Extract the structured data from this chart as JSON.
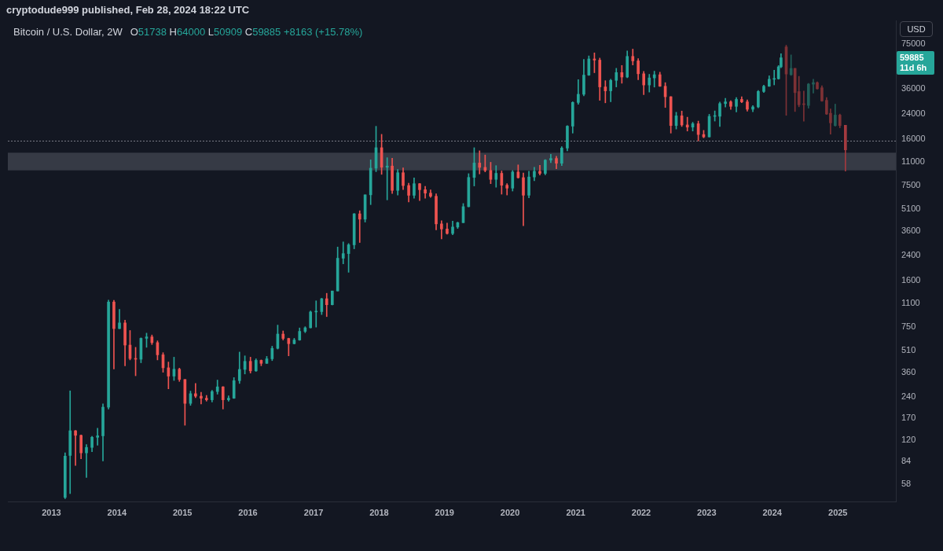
{
  "chart_data": {
    "type": "candlestick",
    "title": "Bitcoin / U.S. Dollar, 2W",
    "subtitle": "O51738 H64000 L50909 C59885 +8163 (+15.78%)",
    "ylabel": "USD",
    "annotations": [
      "cryptodude999 published, Feb 28, 2024 18:22 UTC",
      "59885",
      "11d 6h"
    ],
    "log": true,
    "xlim": [
      "2012-05-03",
      "2025-11-20"
    ],
    "xticks": [
      "2013",
      "2014",
      "2015",
      "2016",
      "2017",
      "2018",
      "2019",
      "2020",
      "2021",
      "2022",
      "2023",
      "2024",
      "2025"
    ],
    "ylim": [
      44,
      110000
    ],
    "yticks": [
      58,
      84,
      120,
      170,
      240,
      360,
      510,
      750,
      1100,
      1600,
      2400,
      3600,
      5100,
      7500,
      11000,
      16000,
      24000,
      36000,
      75000
    ],
    "bands": [
      {
        "axis": "y",
        "from": 9600,
        "to": 12800,
        "color": "#363a45"
      }
    ],
    "ref_lines": [
      {
        "axis": "y",
        "value": 15500,
        "color": "#787b86",
        "line_style": "dotted"
      }
    ],
    "series": [
      {
        "x": [
          "2013-03-18",
          "2013-04-15",
          "2013-05-15",
          "2013-06-15",
          "2013-07-15",
          "2013-08-15",
          "2013-09-15",
          "2013-10-15",
          "2013-11-15",
          "2013-12-15",
          "2014-01-15",
          "2014-02-15",
          "2014-03-15",
          "2014-04-15",
          "2014-05-15",
          "2014-06-15",
          "2014-07-15",
          "2014-08-15",
          "2014-09-15",
          "2014-10-15",
          "2014-11-15",
          "2014-12-15",
          "2015-01-15",
          "2015-02-15",
          "2015-03-15",
          "2015-04-15",
          "2015-05-15",
          "2015-06-15",
          "2015-07-15",
          "2015-08-15",
          "2015-09-15",
          "2015-10-15",
          "2015-11-15",
          "2015-12-15",
          "2016-01-15",
          "2016-02-15",
          "2016-03-15",
          "2016-04-15",
          "2016-05-15",
          "2016-06-15",
          "2016-07-15",
          "2016-08-15",
          "2016-09-15",
          "2016-10-15",
          "2016-11-15",
          "2016-12-15",
          "2017-01-15",
          "2017-02-15",
          "2017-03-15",
          "2017-04-15",
          "2017-05-15",
          "2017-06-15",
          "2017-07-15",
          "2017-08-15",
          "2017-09-15",
          "2017-10-15",
          "2017-11-15",
          "2017-12-15",
          "2018-01-15",
          "2018-02-15",
          "2018-03-15",
          "2018-04-15",
          "2018-05-15",
          "2018-06-15",
          "2018-07-15",
          "2018-08-15",
          "2018-09-15",
          "2018-10-15",
          "2018-11-15",
          "2018-12-15",
          "2019-01-15",
          "2019-02-15",
          "2019-03-15",
          "2019-04-15",
          "2019-05-15",
          "2019-06-15",
          "2019-07-15",
          "2019-08-15",
          "2019-09-15",
          "2019-10-15",
          "2019-11-15",
          "2019-12-15",
          "2020-01-15",
          "2020-02-15",
          "2020-03-15",
          "2020-04-15",
          "2020-05-15",
          "2020-06-15",
          "2020-07-15",
          "2020-08-15",
          "2020-09-15",
          "2020-10-15",
          "2020-11-15",
          "2020-12-15",
          "2021-01-15",
          "2021-02-15",
          "2021-03-15",
          "2021-04-15",
          "2021-05-15",
          "2021-06-15",
          "2021-07-15",
          "2021-08-15",
          "2021-09-15",
          "2021-10-15",
          "2021-11-15",
          "2021-12-15",
          "2022-01-15",
          "2022-02-15",
          "2022-03-15",
          "2022-04-15",
          "2022-05-15",
          "2022-06-15",
          "2022-07-15",
          "2022-08-15",
          "2022-09-15",
          "2022-10-15",
          "2022-11-15",
          "2022-12-15",
          "2023-01-15",
          "2023-02-15",
          "2023-03-15",
          "2023-04-15",
          "2023-05-15",
          "2023-06-15",
          "2023-07-15",
          "2023-08-15",
          "2023-09-15",
          "2023-10-15",
          "2023-11-15",
          "2023-12-15",
          "2024-01-12",
          "2024-02-05",
          "2024-02-19"
        ],
        "ohlc": [
          [
            47,
            97,
            46,
            92
          ],
          [
            93,
            266,
            50,
            139
          ],
          [
            139,
            140,
            79,
            129
          ],
          [
            129,
            130,
            88,
            97
          ],
          [
            97,
            111,
            65,
            106
          ],
          [
            106,
            127,
            99,
            125
          ],
          [
            125,
            145,
            110,
            128
          ],
          [
            128,
            215,
            85,
            204
          ],
          [
            204,
            1163,
            198,
            1128
          ],
          [
            1128,
            1160,
            380,
            732
          ],
          [
            732,
            1000,
            730,
            803
          ],
          [
            803,
            840,
            400,
            560
          ],
          [
            560,
            710,
            440,
            450
          ],
          [
            450,
            540,
            340,
            445
          ],
          [
            445,
            630,
            420,
            625
          ],
          [
            625,
            680,
            540,
            640
          ],
          [
            640,
            660,
            565,
            583
          ],
          [
            583,
            600,
            440,
            478
          ],
          [
            478,
            495,
            360,
            387
          ],
          [
            387,
            425,
            275,
            338
          ],
          [
            338,
            460,
            315,
            378
          ],
          [
            378,
            385,
            310,
            320
          ],
          [
            320,
            320,
            152,
            217
          ],
          [
            217,
            265,
            210,
            254
          ],
          [
            254,
            300,
            238,
            244
          ],
          [
            244,
            260,
            215,
            236
          ],
          [
            236,
            247,
            225,
            230
          ],
          [
            230,
            268,
            222,
            263
          ],
          [
            263,
            317,
            252,
            284
          ],
          [
            284,
            285,
            198,
            230
          ],
          [
            230,
            245,
            225,
            236
          ],
          [
            236,
            330,
            235,
            314
          ],
          [
            314,
            500,
            300,
            377
          ],
          [
            377,
            470,
            350,
            430
          ],
          [
            430,
            460,
            355,
            368
          ],
          [
            368,
            448,
            365,
            437
          ],
          [
            437,
            440,
            400,
            416
          ],
          [
            416,
            466,
            415,
            448
          ],
          [
            448,
            550,
            435,
            531
          ],
          [
            531,
            775,
            525,
            670
          ],
          [
            670,
            705,
            608,
            624
          ],
          [
            624,
            627,
            470,
            573
          ],
          [
            573,
            625,
            570,
            608
          ],
          [
            608,
            740,
            605,
            700
          ],
          [
            700,
            755,
            685,
            742
          ],
          [
            742,
            975,
            740,
            960
          ],
          [
            960,
            1150,
            750,
            965
          ],
          [
            965,
            1200,
            920,
            1190
          ],
          [
            1190,
            1300,
            890,
            1080
          ],
          [
            1080,
            1350,
            1075,
            1350
          ],
          [
            1350,
            2760,
            1350,
            2300
          ],
          [
            2300,
            3000,
            2100,
            2480
          ],
          [
            2480,
            2920,
            1830,
            2860
          ],
          [
            2860,
            4760,
            2680,
            4735
          ],
          [
            4735,
            4980,
            2970,
            4340
          ],
          [
            4340,
            6450,
            4140,
            6450
          ],
          [
            6450,
            11400,
            5500,
            9950
          ],
          [
            9950,
            19666,
            9400,
            13880
          ],
          [
            13880,
            17250,
            9000,
            10100
          ],
          [
            10100,
            11800,
            5940,
            10300
          ],
          [
            10300,
            11700,
            6600,
            6930
          ],
          [
            6930,
            9750,
            6430,
            9240
          ],
          [
            9240,
            10000,
            7030,
            7500
          ],
          [
            7500,
            7780,
            5750,
            6400
          ],
          [
            6400,
            8500,
            6100,
            7730
          ],
          [
            7730,
            7760,
            5880,
            7010
          ],
          [
            7010,
            7410,
            6100,
            6630
          ],
          [
            6630,
            7000,
            6190,
            6300
          ],
          [
            6300,
            6550,
            3650,
            4020
          ],
          [
            4020,
            4230,
            3150,
            3700
          ],
          [
            3700,
            4070,
            3400,
            3440
          ],
          [
            3440,
            4200,
            3370,
            3820
          ],
          [
            3820,
            4140,
            3730,
            4100
          ],
          [
            4100,
            5600,
            4100,
            5320
          ],
          [
            5320,
            9100,
            5300,
            8560
          ],
          [
            8560,
            13880,
            7450,
            10820
          ],
          [
            10820,
            13200,
            9060,
            10080
          ],
          [
            10080,
            12330,
            9370,
            9590
          ],
          [
            9590,
            10950,
            7730,
            8290
          ],
          [
            8290,
            10370,
            7300,
            9150
          ],
          [
            9150,
            9510,
            6520,
            7540
          ],
          [
            7540,
            7740,
            6430,
            7190
          ],
          [
            7190,
            9580,
            6860,
            9350
          ],
          [
            9350,
            10500,
            8450,
            8530
          ],
          [
            8530,
            9190,
            3900,
            6410
          ],
          [
            6410,
            9470,
            6150,
            8620
          ],
          [
            8620,
            10080,
            8120,
            9450
          ],
          [
            9450,
            10430,
            8900,
            9140
          ],
          [
            9140,
            11450,
            8920,
            11340
          ],
          [
            11340,
            12470,
            10900,
            11650
          ],
          [
            11650,
            12070,
            9870,
            10780
          ],
          [
            10780,
            14100,
            10370,
            13800
          ],
          [
            13800,
            19870,
            13200,
            19710
          ],
          [
            19710,
            29300,
            17600,
            28980
          ],
          [
            28980,
            41950,
            28130,
            33100
          ],
          [
            33100,
            58350,
            32300,
            45200
          ],
          [
            45200,
            61780,
            44950,
            58800
          ],
          [
            58800,
            64900,
            47000,
            57700
          ],
          [
            57700,
            59600,
            30000,
            37300
          ],
          [
            37300,
            41300,
            28800,
            35000
          ],
          [
            35000,
            42300,
            29300,
            41500
          ],
          [
            41500,
            50500,
            37300,
            47100
          ],
          [
            47100,
            52900,
            39600,
            43800
          ],
          [
            43800,
            67000,
            43300,
            61300
          ],
          [
            61300,
            69000,
            53300,
            57000
          ],
          [
            57000,
            59100,
            42000,
            46200
          ],
          [
            46200,
            48000,
            32900,
            38500
          ],
          [
            38500,
            45800,
            34300,
            43200
          ],
          [
            43200,
            48200,
            37200,
            45500
          ],
          [
            45500,
            47400,
            37600,
            37700
          ],
          [
            37700,
            40000,
            26700,
            31800
          ],
          [
            31800,
            31900,
            17600,
            19900
          ],
          [
            19900,
            24700,
            18800,
            23300
          ],
          [
            23300,
            25200,
            19600,
            20100
          ],
          [
            20100,
            22800,
            18200,
            19400
          ],
          [
            19400,
            21000,
            18200,
            20500
          ],
          [
            20500,
            21400,
            15500,
            17200
          ],
          [
            17200,
            18400,
            16300,
            16550
          ],
          [
            16550,
            23900,
            16500,
            23100
          ],
          [
            23100,
            25250,
            21400,
            23150
          ],
          [
            23150,
            29200,
            19600,
            28450
          ],
          [
            28450,
            31000,
            26900,
            29250
          ],
          [
            29250,
            29800,
            25850,
            27200
          ],
          [
            27200,
            31400,
            24800,
            30450
          ],
          [
            30450,
            31800,
            28850,
            29250
          ],
          [
            29250,
            30200,
            25150,
            25950
          ],
          [
            25950,
            27500,
            24900,
            26950
          ],
          [
            26950,
            35200,
            26550,
            34650
          ],
          [
            34650,
            38400,
            34100,
            37700
          ],
          [
            37700,
            44700,
            37600,
            42250
          ],
          [
            42250,
            48950,
            38550,
            42600
          ],
          [
            42600,
            52800,
            42300,
            51738
          ],
          [
            51738,
            64000,
            50909,
            59885
          ]
        ],
        "colors": [
          "#26a69a",
          "#26a69a",
          "#ef5350",
          "#ef5350",
          "#26a69a",
          "#26a69a",
          "#26a69a",
          "#26a69a",
          "#26a69a",
          "#ef5350",
          "#26a69a",
          "#ef5350",
          "#ef5350",
          "#ef5350",
          "#26a69a",
          "#26a69a",
          "#ef5350",
          "#ef5350",
          "#ef5350",
          "#ef5350",
          "#26a69a",
          "#ef5350",
          "#ef5350",
          "#26a69a",
          "#ef5350",
          "#ef5350",
          "#ef5350",
          "#26a69a",
          "#26a69a",
          "#ef5350",
          "#26a69a",
          "#26a69a",
          "#26a69a",
          "#26a69a",
          "#ef5350",
          "#26a69a",
          "#ef5350",
          "#26a69a",
          "#26a69a",
          "#26a69a",
          "#ef5350",
          "#ef5350",
          "#26a69a",
          "#26a69a",
          "#26a69a",
          "#26a69a",
          "#26a69a",
          "#26a69a",
          "#ef5350",
          "#26a69a",
          "#26a69a",
          "#26a69a",
          "#26a69a",
          "#26a69a",
          "#ef5350",
          "#26a69a",
          "#26a69a",
          "#26a69a",
          "#ef5350",
          "#26a69a",
          "#ef5350",
          "#26a69a",
          "#ef5350",
          "#ef5350",
          "#26a69a",
          "#ef5350",
          "#ef5350",
          "#ef5350",
          "#ef5350",
          "#ef5350",
          "#ef5350",
          "#26a69a",
          "#26a69a",
          "#26a69a",
          "#26a69a",
          "#26a69a",
          "#ef5350",
          "#ef5350",
          "#ef5350",
          "#26a69a",
          "#ef5350",
          "#ef5350",
          "#26a69a",
          "#ef5350",
          "#ef5350",
          "#26a69a",
          "#26a69a",
          "#ef5350",
          "#26a69a",
          "#26a69a",
          "#ef5350",
          "#26a69a",
          "#26a69a",
          "#26a69a",
          "#26a69a",
          "#26a69a",
          "#26a69a",
          "#ef5350",
          "#ef5350",
          "#ef5350",
          "#26a69a",
          "#26a69a",
          "#ef5350",
          "#26a69a",
          "#ef5350",
          "#ef5350",
          "#ef5350",
          "#26a69a",
          "#26a69a",
          "#ef5350",
          "#ef5350",
          "#ef5350",
          "#26a69a",
          "#ef5350",
          "#ef5350",
          "#26a69a",
          "#ef5350",
          "#ef5350",
          "#26a69a",
          "#26a69a",
          "#26a69a",
          "#26a69a",
          "#ef5350",
          "#26a69a",
          "#ef5350",
          "#ef5350",
          "#26a69a",
          "#26a69a",
          "#26a69a",
          "#26a69a",
          "#26a69a",
          "#26a69a",
          "#26a69a"
        ]
      },
      {
        "x": [
          "2024-03-19",
          "2024-04-15",
          "2024-05-07",
          "2024-05-29",
          "2024-06-25",
          "2024-07-21",
          "2024-08-17",
          "2024-09-08",
          "2024-10-04",
          "2024-10-30",
          "2024-11-21",
          "2024-12-17",
          "2025-01-12",
          "2025-02-12"
        ],
        "ohlc": [
          [
            71500,
            73500,
            23500,
            46000
          ],
          [
            45500,
            62800,
            45000,
            50400
          ],
          [
            50400,
            50500,
            25000,
            34000
          ],
          [
            34600,
            44300,
            27000,
            27900
          ],
          [
            28200,
            34900,
            21400,
            28000
          ],
          [
            27600,
            39500,
            26400,
            39100
          ],
          [
            39000,
            42300,
            33800,
            40000
          ],
          [
            40000,
            40600,
            36000,
            36200
          ],
          [
            36800,
            38000,
            29500,
            29700
          ],
          [
            30000,
            31400,
            23800,
            24000
          ],
          [
            24300,
            26100,
            17300,
            20800
          ],
          [
            19900,
            28200,
            19700,
            23600
          ],
          [
            23600,
            24000,
            19200,
            19900
          ],
          [
            20000,
            20000,
            9500,
            13400
          ]
        ],
        "colors": [
          "#7d3135",
          "#215e58",
          "#7d3135",
          "#7d3135",
          "#7d3135",
          "#215e58",
          "#215e58",
          "#7d3135",
          "#7d3135",
          "#7d3135",
          "#7d3135",
          "#215e58",
          "#7d3135",
          "#a33a3f"
        ]
      }
    ]
  }
}
